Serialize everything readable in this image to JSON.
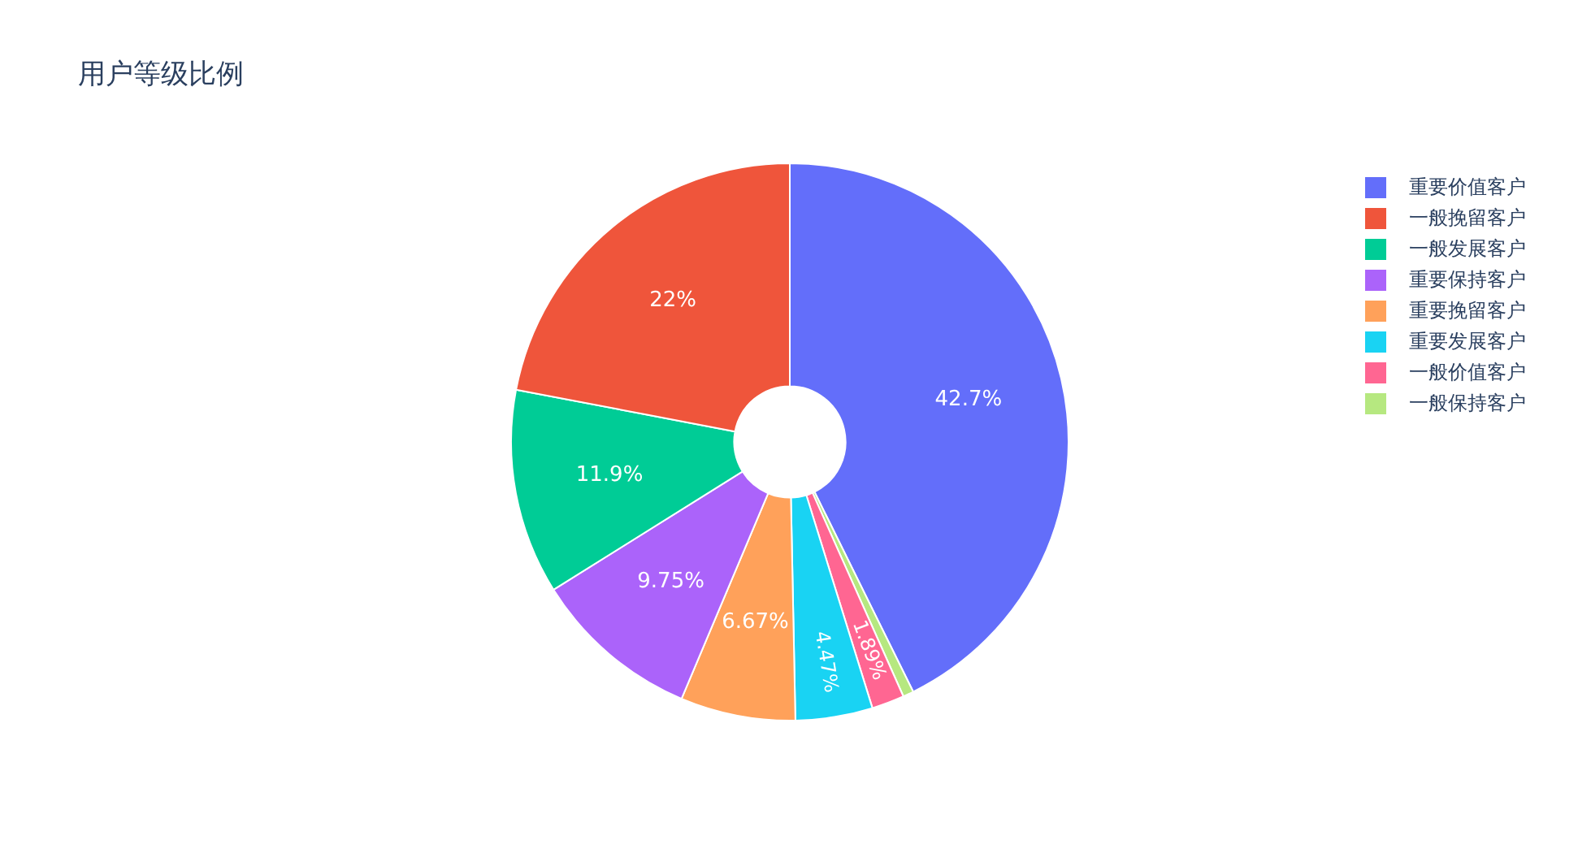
{
  "chart_data": {
    "type": "donut",
    "title": "用户等级比例",
    "categories": [
      "重要价值客户",
      "一般挽留客户",
      "一般发展客户",
      "重要保持客户",
      "重要挽留客户",
      "重要发展客户",
      "一般价值客户",
      "一般保持客户"
    ],
    "values": [
      42.7,
      22,
      11.9,
      9.75,
      6.67,
      4.47,
      1.89,
      0.62
    ],
    "colors": [
      "#636efa",
      "#ef553b",
      "#00cc96",
      "#ab63fa",
      "#ffa15a",
      "#19d3f3",
      "#ff6692",
      "#b6e880"
    ],
    "value_labels": [
      "42.7%",
      "22%",
      "11.9%",
      "9.75%",
      "6.67%",
      "4.47%",
      "1.89%",
      null
    ],
    "legend": "top right"
  }
}
